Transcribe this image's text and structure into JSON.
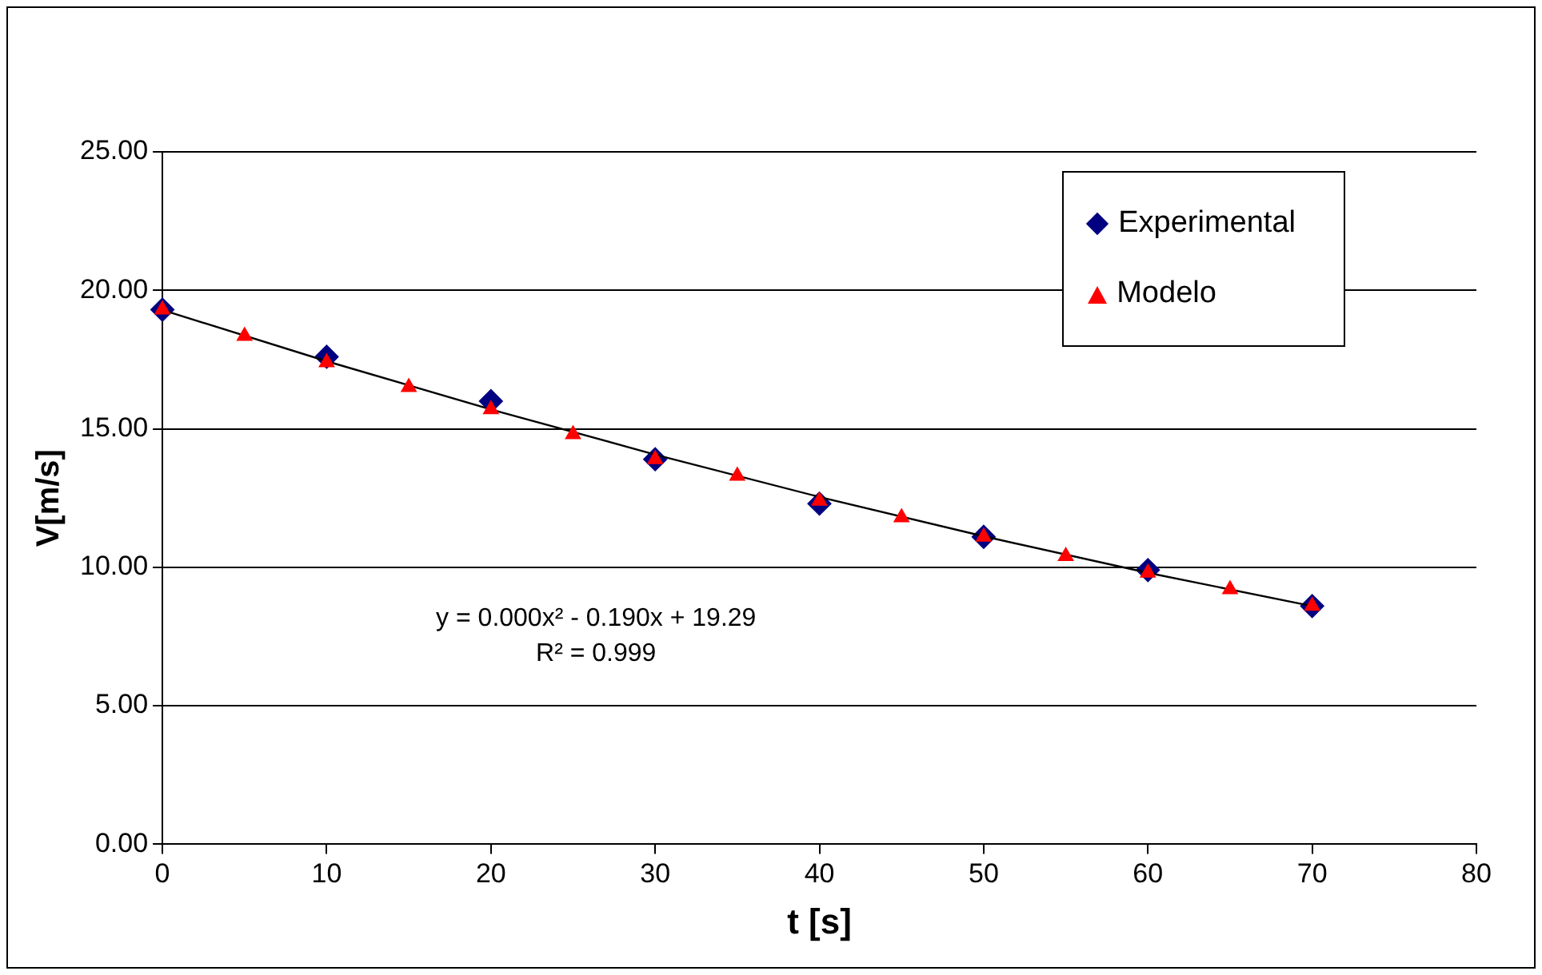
{
  "chart_data": {
    "type": "scatter",
    "xlabel": "t [s]",
    "ylabel": "V[m/s]",
    "xlim": [
      0,
      80
    ],
    "xticks": [
      0,
      10,
      20,
      30,
      40,
      50,
      60,
      70,
      80
    ],
    "ylim": [
      0,
      25
    ],
    "yticks": [
      {
        "value": 0,
        "label": "0.00"
      },
      {
        "value": 5,
        "label": "5.00"
      },
      {
        "value": 10,
        "label": "10.00"
      },
      {
        "value": 15,
        "label": "15.00"
      },
      {
        "value": 20,
        "label": "20.00"
      },
      {
        "value": 25,
        "label": "25.00"
      }
    ],
    "grid": "y",
    "legend": "top right",
    "annotations": [
      "y = 0.000x² - 0.190x + 19.29",
      "R² = 0.999"
    ],
    "series": [
      {
        "name": "Experimental",
        "color": "#000080",
        "marker": "diamond",
        "x": [
          0,
          10,
          20,
          30,
          40,
          50,
          60,
          70
        ],
        "values": [
          19.3,
          17.6,
          16.0,
          13.9,
          12.3,
          11.1,
          9.9,
          8.6
        ]
      },
      {
        "type": "line",
        "color": "#000000",
        "marker": "none",
        "x": [
          0,
          10,
          20,
          30,
          40,
          50,
          60,
          70
        ],
        "values": [
          19.29,
          17.44,
          15.7,
          14.07,
          12.54,
          11.12,
          9.8,
          8.6
        ]
      },
      {
        "name": "Modelo",
        "color": "#ff0000",
        "marker": "triangle",
        "x": [
          0,
          5,
          10,
          15,
          20,
          25,
          30,
          35,
          40,
          45,
          50,
          55,
          60,
          65,
          70
        ],
        "values": [
          19.3,
          18.35,
          17.4,
          16.5,
          15.7,
          14.8,
          13.9,
          13.3,
          12.4,
          11.8,
          11.1,
          10.4,
          9.8,
          9.2,
          8.6
        ]
      }
    ]
  }
}
